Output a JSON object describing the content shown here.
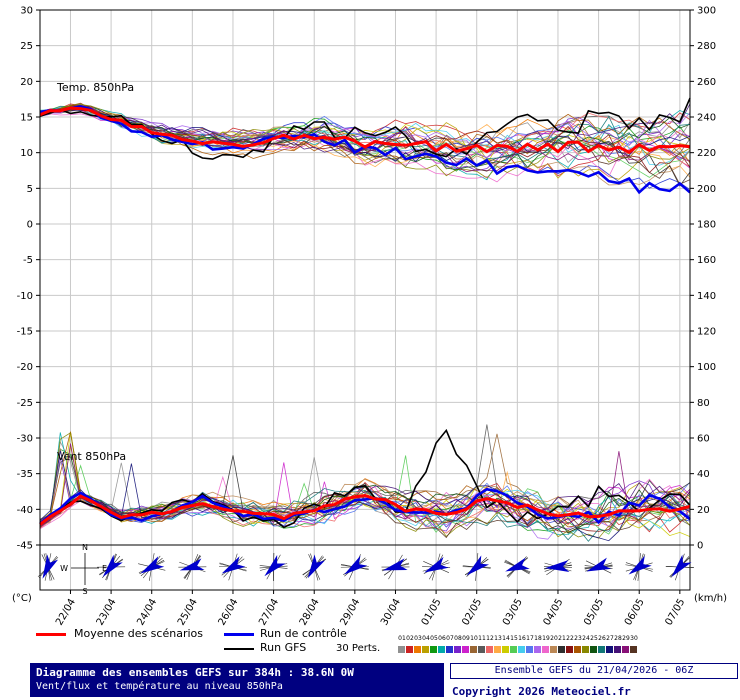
{
  "labels": {
    "temp_series": "Temp. 850hPa",
    "wind_series": "Vent 850hPa"
  },
  "axes_units": {
    "left": "(°C)",
    "right": "(km/h)"
  },
  "legend": {
    "mean_label": "Moyenne des scénarios",
    "mean_color": "#ff0000",
    "control_label": "Run de contrôle",
    "control_color": "#0000ee",
    "gfs_label": "Run GFS",
    "gfs_color": "#000000",
    "perts_label": "30 Perts.",
    "member_numbers": [
      "01",
      "02",
      "03",
      "04",
      "05",
      "06",
      "07",
      "08",
      "09",
      "10",
      "11",
      "12",
      "13",
      "14",
      "15",
      "16",
      "17",
      "18",
      "19",
      "20",
      "21",
      "22",
      "23",
      "24",
      "25",
      "26",
      "27",
      "28",
      "29",
      "30"
    ],
    "member_colors": [
      "#909090",
      "#cc2222",
      "#ee7700",
      "#bba000",
      "#119911",
      "#00aaaa",
      "#2233cc",
      "#7722cc",
      "#cc22cc",
      "#996633",
      "#5a5a5a",
      "#ee6666",
      "#ffaa44",
      "#cccc00",
      "#55cc55",
      "#44ccee",
      "#5577ee",
      "#aa66ee",
      "#ee66cc",
      "#bb8855",
      "#2e2e2e",
      "#881111",
      "#aa5500",
      "#888800",
      "#115511",
      "#117777",
      "#111177",
      "#441177",
      "#881177",
      "#553322"
    ]
  },
  "footer": {
    "title": "Diagramme des ensembles GEFS sur 384h : 38.6N 0W",
    "subtitle": "Vent/flux et température au niveau 850hPa",
    "run_info": "Ensemble GEFS du 21/04/2026 - 06Z",
    "copyright": "Copyright 2026 Meteociel.fr"
  },
  "chart_data": {
    "type": "line",
    "x_axis": {
      "start": "21/04 06Z",
      "hours": 384,
      "step_hours": 6,
      "day_labels": [
        "22/04",
        "23/04",
        "24/04",
        "25/04",
        "26/04",
        "27/04",
        "28/04",
        "29/04",
        "30/04",
        "01/05",
        "02/05",
        "03/05",
        "04/05",
        "05/05",
        "06/05",
        "07/05"
      ]
    },
    "temp_ticks": [
      30,
      25,
      20,
      15,
      10,
      5,
      0,
      -5,
      -10,
      -15,
      -20,
      -25,
      -30,
      -35,
      -40,
      -45
    ],
    "wind_ticks": [
      300,
      280,
      260,
      240,
      220,
      200,
      180,
      160,
      140,
      120,
      100,
      80,
      60,
      40,
      20,
      0
    ],
    "compass_labels": {
      "n": "N",
      "e": "E",
      "s": "S",
      "w": "W"
    },
    "temp_850hPa": {
      "unit": "°C",
      "axis_range": [
        -45,
        30
      ],
      "n_members": 30,
      "daily_values": {
        "mean": [
          15.5,
          16.3,
          14.3,
          12.6,
          11.6,
          11.2,
          12.0,
          12.6,
          11.2,
          11.5,
          10.6,
          10.2,
          10.6,
          11.0,
          10.8,
          10.6,
          10.8
        ],
        "control": [
          15.5,
          16.5,
          13.8,
          12.0,
          11.0,
          10.6,
          12.2,
          12.0,
          10.2,
          9.8,
          8.6,
          8.0,
          7.6,
          7.0,
          6.2,
          5.2,
          4.6
        ],
        "gfs": [
          15.5,
          16.0,
          14.6,
          12.2,
          10.0,
          9.2,
          12.6,
          13.6,
          12.2,
          12.4,
          8.8,
          13.0,
          14.6,
          13.2,
          15.6,
          14.2,
          16.2
        ]
      }
    },
    "wind_850hPa": {
      "unit": "km/h",
      "axis_range": [
        0,
        300
      ],
      "n_members": 30,
      "daily_values": {
        "mean": [
          12,
          27,
          16,
          18,
          24,
          18,
          16,
          21,
          29,
          20,
          18,
          25,
          21,
          16,
          18,
          22,
          20
        ],
        "control": [
          12,
          30,
          14,
          16,
          26,
          16,
          14,
          20,
          26,
          18,
          16,
          30,
          20,
          14,
          16,
          26,
          18
        ],
        "gfs": [
          12,
          26,
          15,
          20,
          28,
          14,
          12,
          24,
          34,
          18,
          65,
          25,
          14,
          20,
          30,
          22,
          24
        ]
      }
    },
    "wind_directions_deg": [
      205,
      220,
      240,
      255,
      240,
      225,
      210,
      235,
      255,
      245,
      230,
      250,
      265,
      250,
      235,
      220
    ]
  }
}
